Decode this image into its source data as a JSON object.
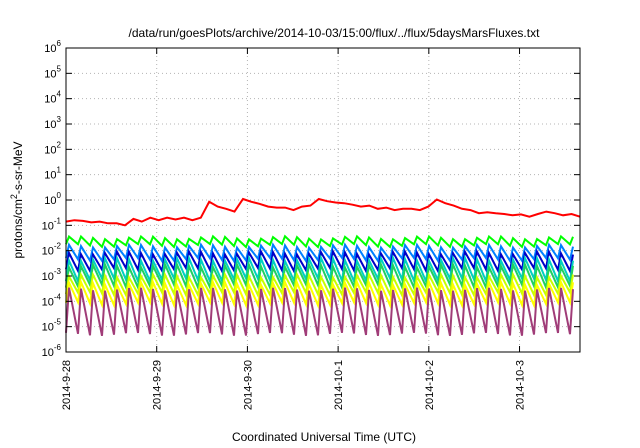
{
  "chart_data": {
    "type": "line",
    "title": "/data/run/goesPlots/archive/2014-10-03/15:00/flux/../flux/5daysMarsFluxes.txt",
    "xlabel": "Coordinated Universal Time (UTC)",
    "ylabel": {
      "before": "protons/cm",
      "sup": "2",
      "after": "-s-sr-MeV"
    },
    "y_scale": "log",
    "ylim": [
      1e-06,
      1000000.0
    ],
    "y_ticks": [
      {
        "base": "10",
        "exp": "-6",
        "value": 1e-06
      },
      {
        "base": "10",
        "exp": "-5",
        "value": 1e-05
      },
      {
        "base": "10",
        "exp": "-4",
        "value": 0.0001
      },
      {
        "base": "10",
        "exp": "-3",
        "value": 0.001
      },
      {
        "base": "10",
        "exp": "-2",
        "value": 0.01
      },
      {
        "base": "10",
        "exp": "-1",
        "value": 0.1
      },
      {
        "base": "10",
        "exp": "0",
        "value": 1
      },
      {
        "base": "10",
        "exp": "1",
        "value": 10
      },
      {
        "base": "10",
        "exp": "2",
        "value": 100
      },
      {
        "base": "10",
        "exp": "3",
        "value": 1000
      },
      {
        "base": "10",
        "exp": "4",
        "value": 10000
      },
      {
        "base": "10",
        "exp": "5",
        "value": 100000
      },
      {
        "base": "10",
        "exp": "6",
        "value": 1000000
      }
    ],
    "xlim": [
      "2014-9-28",
      "2014-10-3 16:00"
    ],
    "x_ticks": [
      "2014-9-28",
      "2014-9-29",
      "2014-9-30",
      "2014-10-1",
      "2014-10-2",
      "2014-10-3"
    ],
    "grid": true,
    "series": [
      {
        "color": "#ff0000",
        "style": "staircase",
        "values": [
          0.14,
          0.16,
          0.15,
          0.13,
          0.14,
          0.12,
          0.12,
          0.1,
          0.18,
          0.14,
          0.2,
          0.16,
          0.2,
          0.17,
          0.2,
          0.16,
          0.2,
          0.85,
          0.55,
          0.45,
          0.35,
          1.1,
          0.85,
          0.7,
          0.55,
          0.5,
          0.5,
          0.4,
          0.55,
          0.6,
          1.1,
          0.9,
          0.8,
          0.75,
          0.65,
          0.55,
          0.6,
          0.45,
          0.5,
          0.4,
          0.45,
          0.45,
          0.4,
          0.55,
          1.05,
          0.75,
          0.6,
          0.45,
          0.4,
          0.3,
          0.33,
          0.3,
          0.28,
          0.25,
          0.27,
          0.22,
          0.28,
          0.35,
          0.3,
          0.25,
          0.28,
          0.22
        ]
      },
      {
        "color": "#00ff00",
        "style": "sawtooth",
        "peak": 0.032,
        "trough": 0.016
      },
      {
        "color": "#0080ff",
        "style": "sawtooth",
        "peak": 0.015,
        "trough": 0.0045
      },
      {
        "color": "#0000c8",
        "style": "sawtooth",
        "peak": 0.008,
        "trough": 0.0018
      },
      {
        "color": "#00d0c0",
        "style": "sawtooth",
        "peak": 0.0045,
        "trough": 0.0007
      },
      {
        "color": "#20d060",
        "style": "sawtooth",
        "peak": 0.0025,
        "trough": 0.0004
      },
      {
        "color": "#c8ff00",
        "style": "sawtooth",
        "peak": 0.001,
        "trough": 0.0002
      },
      {
        "color": "#ffff00",
        "style": "sawtooth",
        "peak": 0.0005,
        "trough": 8e-05
      },
      {
        "color": "#a03c78",
        "style": "sawtooth",
        "peak": 0.0003,
        "trough": 5e-06
      }
    ]
  }
}
